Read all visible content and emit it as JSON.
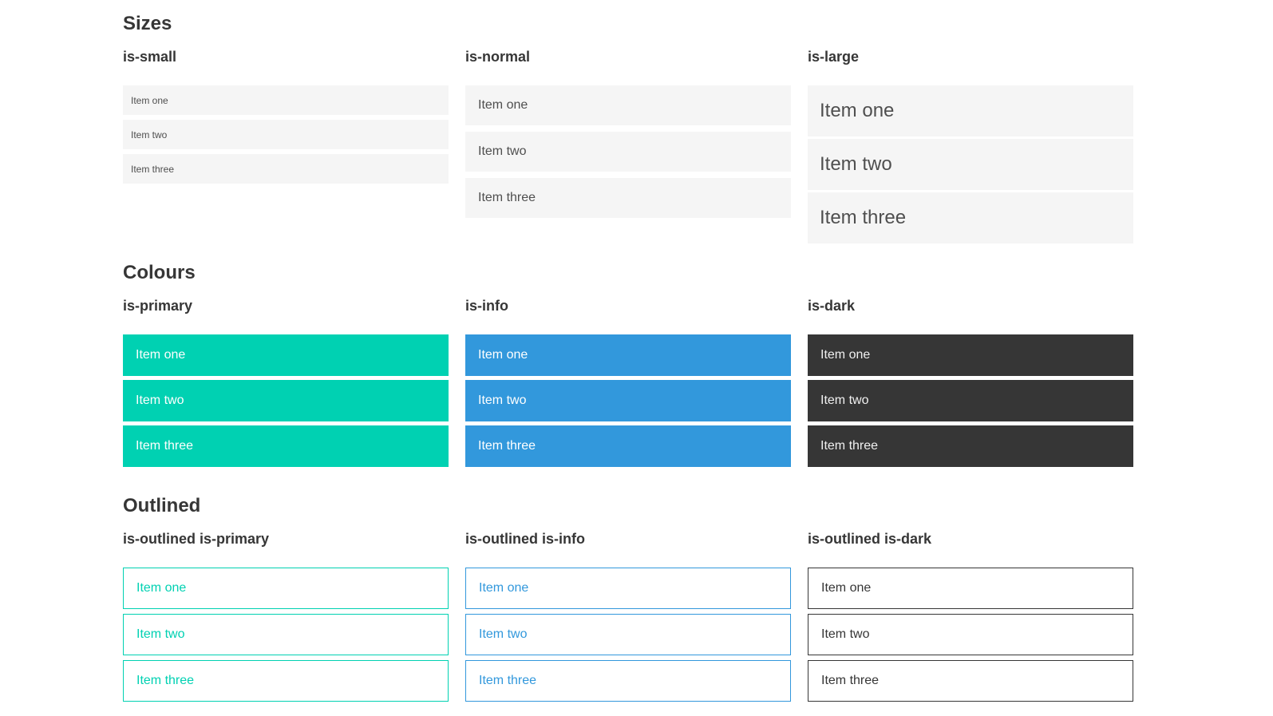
{
  "colors": {
    "page-bg": "#ffffff",
    "heading-text": "#363636",
    "item-bg": "#f5f5f5",
    "item-text": "#4f4f4f",
    "primary": "#00d1b2",
    "info": "#3298dc",
    "dark": "#363636",
    "white": "#ffffff",
    "dark-item-text": "#f0f0f0"
  },
  "sections": [
    {
      "title": "Sizes",
      "columns": [
        {
          "label": "is-small",
          "items": [
            "Item one",
            "Item two",
            "Item three"
          ]
        },
        {
          "label": "is-normal",
          "items": [
            "Item one",
            "Item two",
            "Item three"
          ]
        },
        {
          "label": "is-large",
          "items": [
            "Item one",
            "Item two",
            "Item three"
          ]
        }
      ]
    },
    {
      "title": "Colours",
      "columns": [
        {
          "label": "is-primary",
          "items": [
            "Item one",
            "Item two",
            "Item three"
          ]
        },
        {
          "label": "is-info",
          "items": [
            "Item one",
            "Item two",
            "Item three"
          ]
        },
        {
          "label": "is-dark",
          "items": [
            "Item one",
            "Item two",
            "Item three"
          ]
        }
      ]
    },
    {
      "title": "Outlined",
      "columns": [
        {
          "label": "is-outlined is-primary",
          "items": [
            "Item one",
            "Item two",
            "Item three"
          ]
        },
        {
          "label": "is-outlined is-info",
          "items": [
            "Item one",
            "Item two",
            "Item three"
          ]
        },
        {
          "label": "is-outlined is-dark",
          "items": [
            "Item one",
            "Item two",
            "Item three"
          ]
        }
      ]
    }
  ]
}
